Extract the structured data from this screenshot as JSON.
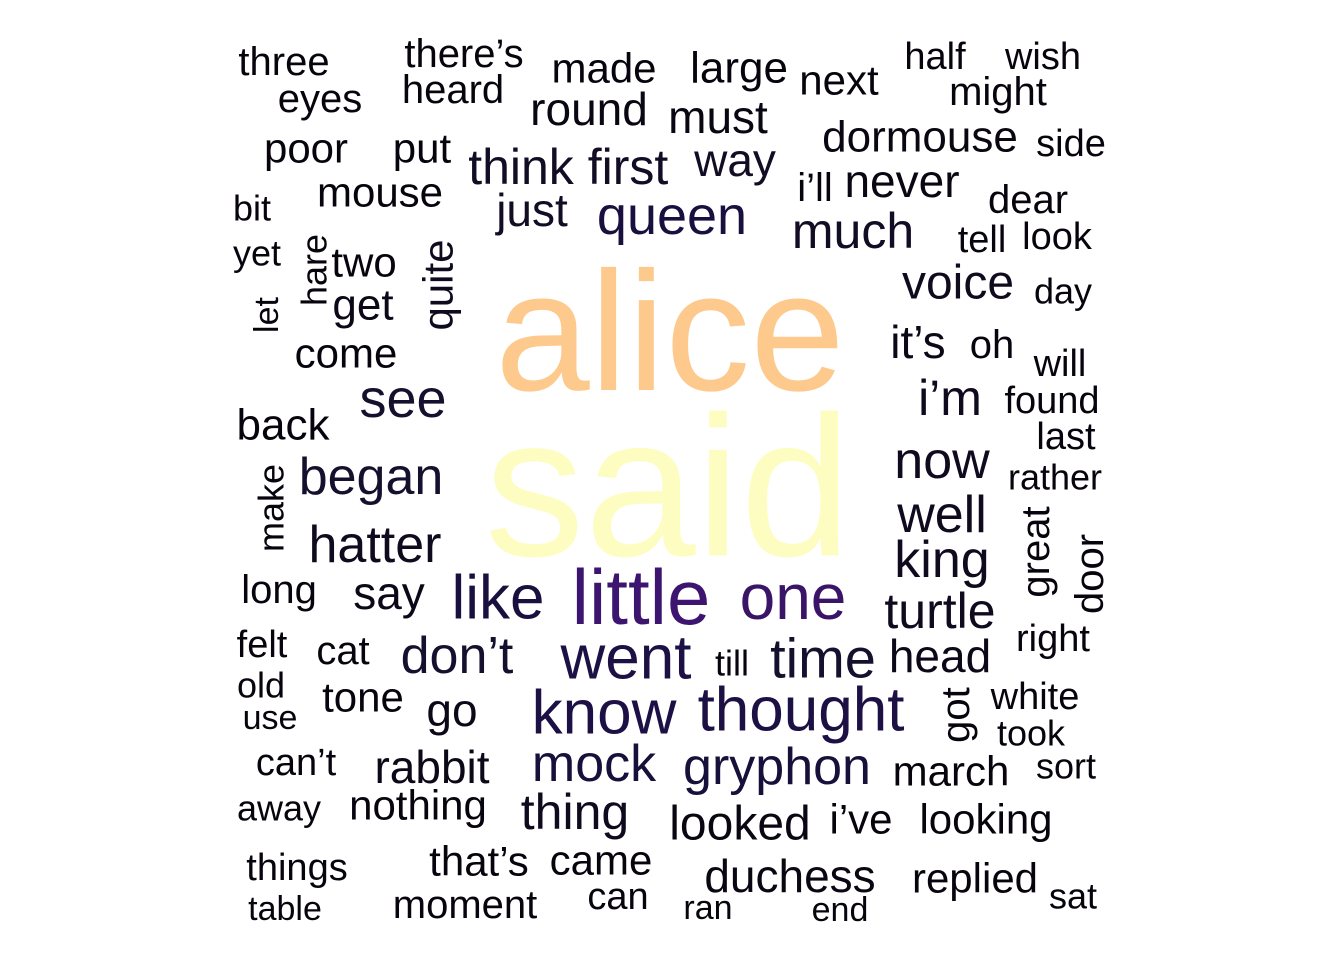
{
  "words": [
    {
      "text": "said",
      "color": "#fdfdc2"
    },
    {
      "text": "alice",
      "color": "#fdc98c"
    },
    {
      "text": "little",
      "color": "#3d1570"
    },
    {
      "text": "one",
      "color": "#3a1466"
    },
    {
      "text": "know",
      "color": "#1c1044"
    },
    {
      "text": "went",
      "color": "#1c1044"
    },
    {
      "text": "thought",
      "color": "#1c1044"
    },
    {
      "text": "queen",
      "color": "#1a1040"
    },
    {
      "text": "like",
      "color": "#1a1040"
    },
    {
      "text": "time",
      "color": "#15102e"
    },
    {
      "text": "mock",
      "color": "#17103a"
    },
    {
      "text": "gryphon",
      "color": "#17103a"
    },
    {
      "text": "see",
      "color": "#15102e"
    },
    {
      "text": "began",
      "color": "#15102e"
    },
    {
      "text": "don’t",
      "color": "#15102e"
    },
    {
      "text": "much",
      "color": "#120c24"
    },
    {
      "text": "way",
      "color": "#120c24"
    },
    {
      "text": "think",
      "color": "#120c24"
    },
    {
      "text": "first",
      "color": "#120c24"
    },
    {
      "text": "just",
      "color": "#120c24"
    },
    {
      "text": "hatter",
      "color": "#100a1e"
    },
    {
      "text": "well",
      "color": "#100a1e"
    },
    {
      "text": "king",
      "color": "#100a1e"
    },
    {
      "text": "now",
      "color": "#100a1e"
    },
    {
      "text": "turtle",
      "color": "#100a1e"
    },
    {
      "text": "voice",
      "color": "#100a1e"
    },
    {
      "text": "quite",
      "color": "#100a1e",
      "rotate": true
    },
    {
      "text": "thing",
      "color": "#100a1e"
    },
    {
      "text": "i’m",
      "color": "#100a1e"
    },
    {
      "text": "it’s",
      "color": "#0c0818"
    },
    {
      "text": "say",
      "color": "#0c0818"
    },
    {
      "text": "go",
      "color": "#0c0818"
    },
    {
      "text": "rabbit",
      "color": "#0c0818"
    },
    {
      "text": "head",
      "color": "#0c0818"
    },
    {
      "text": "get",
      "color": "#0c0818"
    },
    {
      "text": "looked",
      "color": "#0a0612"
    },
    {
      "text": "duchess",
      "color": "#0a0612"
    },
    {
      "text": "round",
      "color": "#0a0612"
    },
    {
      "text": "must",
      "color": "#0a0612"
    },
    {
      "text": "dormouse",
      "color": "#0a0612"
    },
    {
      "text": "never",
      "color": "#0a0612"
    },
    {
      "text": "come",
      "color": "#08040e"
    },
    {
      "text": "back",
      "color": "#08040e"
    },
    {
      "text": "mouse",
      "color": "#08040e"
    },
    {
      "text": "large",
      "color": "#08040e"
    },
    {
      "text": "made",
      "color": "#08040e"
    },
    {
      "text": "next",
      "color": "#08040e"
    },
    {
      "text": "heard",
      "color": "#08040e"
    },
    {
      "text": "there’s",
      "color": "#08040e"
    },
    {
      "text": "three",
      "color": "#08040e"
    },
    {
      "text": "eyes",
      "color": "#08040e"
    },
    {
      "text": "half",
      "color": "#08040e"
    },
    {
      "text": "wish",
      "color": "#08040e"
    },
    {
      "text": "might",
      "color": "#08040e"
    },
    {
      "text": "poor",
      "color": "#08040e"
    },
    {
      "text": "put",
      "color": "#08040e"
    },
    {
      "text": "side",
      "color": "#08040e"
    },
    {
      "text": "i’ll",
      "color": "#08040e"
    },
    {
      "text": "dear",
      "color": "#08040e"
    },
    {
      "text": "bit",
      "color": "#08040e"
    },
    {
      "text": "yet",
      "color": "#08040e"
    },
    {
      "text": "hare",
      "color": "#08040e",
      "rotate": true
    },
    {
      "text": "two",
      "color": "#08040e"
    },
    {
      "text": "tell",
      "color": "#08040e"
    },
    {
      "text": "look",
      "color": "#08040e"
    },
    {
      "text": "let",
      "color": "#08040e",
      "rotate": true
    },
    {
      "text": "day",
      "color": "#08040e"
    },
    {
      "text": "oh",
      "color": "#08040e"
    },
    {
      "text": "will",
      "color": "#08040e"
    },
    {
      "text": "found",
      "color": "#08040e"
    },
    {
      "text": "last",
      "color": "#08040e"
    },
    {
      "text": "make",
      "color": "#08040e",
      "rotate": true
    },
    {
      "text": "rather",
      "color": "#08040e"
    },
    {
      "text": "great",
      "color": "#08040e",
      "rotate": true
    },
    {
      "text": "door",
      "color": "#08040e",
      "rotate": true
    },
    {
      "text": "long",
      "color": "#08040e"
    },
    {
      "text": "felt",
      "color": "#08040e"
    },
    {
      "text": "cat",
      "color": "#08040e"
    },
    {
      "text": "right",
      "color": "#08040e"
    },
    {
      "text": "till",
      "color": "#08040e"
    },
    {
      "text": "old",
      "color": "#08040e"
    },
    {
      "text": "tone",
      "color": "#08040e"
    },
    {
      "text": "got",
      "color": "#08040e",
      "rotate": true
    },
    {
      "text": "white",
      "color": "#08040e"
    },
    {
      "text": "use",
      "color": "#08040e"
    },
    {
      "text": "took",
      "color": "#08040e"
    },
    {
      "text": "can’t",
      "color": "#08040e"
    },
    {
      "text": "march",
      "color": "#08040e"
    },
    {
      "text": "sort",
      "color": "#08040e"
    },
    {
      "text": "away",
      "color": "#08040e"
    },
    {
      "text": "nothing",
      "color": "#08040e"
    },
    {
      "text": "i’ve",
      "color": "#08040e"
    },
    {
      "text": "looking",
      "color": "#08040e"
    },
    {
      "text": "things",
      "color": "#08040e"
    },
    {
      "text": "that’s",
      "color": "#08040e"
    },
    {
      "text": "came",
      "color": "#08040e"
    },
    {
      "text": "replied",
      "color": "#08040e"
    },
    {
      "text": "table",
      "color": "#08040e"
    },
    {
      "text": "moment",
      "color": "#08040e"
    },
    {
      "text": "can",
      "color": "#08040e"
    },
    {
      "text": "ran",
      "color": "#08040e"
    },
    {
      "text": "end",
      "color": "#08040e"
    },
    {
      "text": "sat",
      "color": "#08040e"
    }
  ]
}
